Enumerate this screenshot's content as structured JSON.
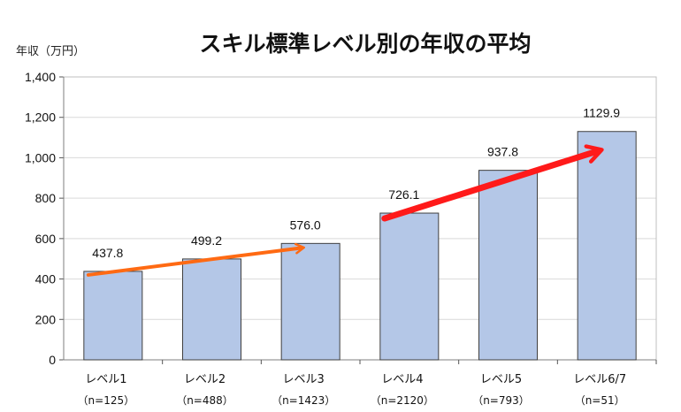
{
  "chart_data": {
    "type": "bar",
    "title": "スキル標準レベル別の年収の平均",
    "ylabel": "年収（万円）",
    "xlabel": "",
    "ylim": [
      0,
      1400
    ],
    "yticks": [
      0,
      200,
      400,
      600,
      800,
      1000,
      1200,
      1400
    ],
    "ytick_labels": [
      "0",
      "200",
      "400",
      "600",
      "800",
      "1,000",
      "1,200",
      "1,400"
    ],
    "categories": [
      "レベル1",
      "レベル2",
      "レベル3",
      "レベル4",
      "レベル5",
      "レベル6/7"
    ],
    "sample_sizes": [
      "（n=125）",
      "（n=488）",
      "（n=1423）",
      "（n=2120）",
      "（n=793）",
      "（n=51）"
    ],
    "values": [
      437.8,
      499.2,
      576.0,
      726.1,
      937.8,
      1129.9
    ],
    "value_labels": [
      "437.8",
      "499.2",
      "576.0",
      "726.1",
      "937.8",
      "1129.9"
    ],
    "bar_color": "#b4c7e7",
    "bar_edge_color": "#3f3f3f",
    "grid": true,
    "grid_color": "#d9d9d9",
    "annotations": [
      {
        "type": "arrow",
        "from": "レベル1",
        "to": "レベル3",
        "color": "#ff6a13"
      },
      {
        "type": "arrow",
        "from": "レベル4",
        "to": "レベル6/7",
        "color": "#ff1a1a"
      }
    ]
  }
}
